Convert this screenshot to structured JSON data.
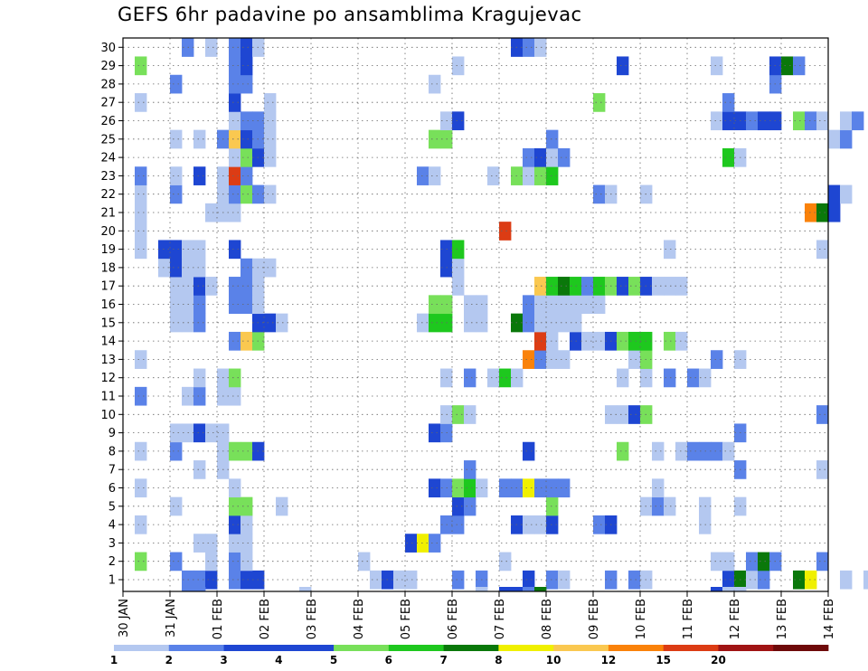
{
  "chart_data": {
    "type": "heatmap",
    "title": "GEFS 6hr padavine po ansamblima Kragujevac",
    "xlabel": "",
    "ylabel": "",
    "x_tick_labels": [
      "30 JAN",
      "31 JAN",
      "01 FEB",
      "02 FEB",
      "03 FEB",
      "04 FEB",
      "05 FEB",
      "06 FEB",
      "07 FEB",
      "08 FEB",
      "09 FEB",
      "10 FEB",
      "11 FEB",
      "12 FEB",
      "13 FEB",
      "14 FEB"
    ],
    "steps_per_day": 4,
    "y_tick_labels": [
      "1",
      "2",
      "3",
      "4",
      "5",
      "6",
      "7",
      "8",
      "9",
      "10",
      "11",
      "12",
      "13",
      "14",
      "15",
      "16",
      "17",
      "18",
      "19",
      "20",
      "21",
      "22",
      "23",
      "24",
      "25",
      "26",
      "27",
      "28",
      "29",
      "30"
    ],
    "grid": "dotted",
    "colorbar": {
      "levels": [
        "1",
        "2",
        "3",
        "4",
        "5",
        "6",
        "7",
        "8",
        "10",
        "12",
        "15",
        "20"
      ],
      "colors": [
        "#b4c8f0",
        "#5a82e8",
        "#1e46d2",
        "#1e46d2",
        "#78e05a",
        "#1ec81e",
        "#0a780a",
        "#f0f000",
        "#fac850",
        "#fa820a",
        "#dc3c14",
        "#a01414",
        "#6e0a0a"
      ]
    },
    "cells": [
      [
        1,
        5,
        2
      ],
      [
        1,
        6,
        2
      ],
      [
        1,
        7,
        3
      ],
      [
        1,
        9,
        2
      ],
      [
        1,
        10,
        4
      ],
      [
        1,
        11,
        3
      ],
      [
        1,
        21,
        1
      ],
      [
        1,
        22,
        3
      ],
      [
        1,
        23,
        1
      ],
      [
        1,
        24,
        1
      ],
      [
        1,
        28,
        2
      ],
      [
        1,
        30,
        2
      ],
      [
        1,
        34,
        3
      ],
      [
        1,
        36,
        2
      ],
      [
        1,
        37,
        1
      ],
      [
        1,
        41,
        2
      ],
      [
        1,
        43,
        2
      ],
      [
        1,
        44,
        1
      ],
      [
        1,
        51,
        4
      ],
      [
        1,
        52,
        7
      ],
      [
        1,
        53,
        1
      ],
      [
        1,
        54,
        2
      ],
      [
        1,
        57,
        7
      ],
      [
        1,
        58,
        8
      ],
      [
        1,
        61,
        1
      ],
      [
        1,
        63,
        1
      ],
      [
        1,
        64,
        1
      ],
      [
        2,
        1,
        5
      ],
      [
        2,
        4,
        2
      ],
      [
        2,
        7,
        1
      ],
      [
        2,
        9,
        2
      ],
      [
        2,
        10,
        1
      ],
      [
        2,
        20,
        1
      ],
      [
        2,
        32,
        1
      ],
      [
        2,
        50,
        1
      ],
      [
        2,
        51,
        1
      ],
      [
        2,
        53,
        2
      ],
      [
        2,
        54,
        7
      ],
      [
        2,
        55,
        2
      ],
      [
        2,
        59,
        2
      ],
      [
        3,
        6,
        1
      ],
      [
        3,
        7,
        1
      ],
      [
        3,
        9,
        1
      ],
      [
        3,
        10,
        1
      ],
      [
        3,
        24,
        3
      ],
      [
        3,
        25,
        8
      ],
      [
        3,
        26,
        2
      ],
      [
        4,
        1,
        1
      ],
      [
        4,
        9,
        3
      ],
      [
        4,
        10,
        1
      ],
      [
        4,
        27,
        2
      ],
      [
        4,
        28,
        2
      ],
      [
        4,
        33,
        3
      ],
      [
        4,
        34,
        1
      ],
      [
        4,
        35,
        1
      ],
      [
        4,
        36,
        3
      ],
      [
        4,
        40,
        2
      ],
      [
        4,
        41,
        3
      ],
      [
        4,
        49,
        1
      ],
      [
        5,
        4,
        1
      ],
      [
        5,
        9,
        5
      ],
      [
        5,
        10,
        5
      ],
      [
        5,
        13,
        1
      ],
      [
        5,
        28,
        3
      ],
      [
        5,
        29,
        2
      ],
      [
        5,
        36,
        5
      ],
      [
        5,
        44,
        1
      ],
      [
        5,
        45,
        2
      ],
      [
        5,
        46,
        1
      ],
      [
        5,
        49,
        1
      ],
      [
        5,
        52,
        1
      ],
      [
        6,
        1,
        1
      ],
      [
        6,
        9,
        1
      ],
      [
        6,
        26,
        3
      ],
      [
        6,
        27,
        2
      ],
      [
        6,
        28,
        5
      ],
      [
        6,
        29,
        6
      ],
      [
        6,
        30,
        1
      ],
      [
        6,
        32,
        2
      ],
      [
        6,
        33,
        2
      ],
      [
        6,
        34,
        8
      ],
      [
        6,
        35,
        2
      ],
      [
        6,
        36,
        2
      ],
      [
        6,
        37,
        2
      ],
      [
        6,
        45,
        1
      ],
      [
        7,
        6,
        1
      ],
      [
        7,
        8,
        1
      ],
      [
        7,
        29,
        2
      ],
      [
        7,
        52,
        2
      ],
      [
        7,
        59,
        1
      ],
      [
        8,
        1,
        1
      ],
      [
        8,
        4,
        2
      ],
      [
        8,
        8,
        1
      ],
      [
        8,
        9,
        5
      ],
      [
        8,
        10,
        5
      ],
      [
        8,
        11,
        3
      ],
      [
        8,
        34,
        3
      ],
      [
        8,
        42,
        5
      ],
      [
        8,
        45,
        1
      ],
      [
        8,
        47,
        1
      ],
      [
        8,
        48,
        2
      ],
      [
        8,
        49,
        2
      ],
      [
        8,
        50,
        2
      ],
      [
        8,
        51,
        1
      ],
      [
        9,
        4,
        1
      ],
      [
        9,
        5,
        1
      ],
      [
        9,
        6,
        3
      ],
      [
        9,
        7,
        1
      ],
      [
        9,
        8,
        1
      ],
      [
        9,
        26,
        3
      ],
      [
        9,
        27,
        2
      ],
      [
        9,
        52,
        2
      ],
      [
        10,
        27,
        1
      ],
      [
        10,
        28,
        5
      ],
      [
        10,
        29,
        1
      ],
      [
        10,
        41,
        1
      ],
      [
        10,
        42,
        1
      ],
      [
        10,
        43,
        3
      ],
      [
        10,
        44,
        5
      ],
      [
        10,
        59,
        2
      ],
      [
        11,
        1,
        2
      ],
      [
        11,
        5,
        1
      ],
      [
        11,
        6,
        2
      ],
      [
        11,
        8,
        1
      ],
      [
        11,
        9,
        1
      ],
      [
        12,
        6,
        1
      ],
      [
        12,
        8,
        1
      ],
      [
        12,
        9,
        5
      ],
      [
        12,
        27,
        1
      ],
      [
        12,
        29,
        2
      ],
      [
        12,
        31,
        1
      ],
      [
        12,
        32,
        6
      ],
      [
        12,
        33,
        1
      ],
      [
        12,
        42,
        1
      ],
      [
        12,
        44,
        1
      ],
      [
        12,
        46,
        2
      ],
      [
        12,
        48,
        2
      ],
      [
        12,
        49,
        1
      ],
      [
        13,
        1,
        1
      ],
      [
        13,
        34,
        10
      ],
      [
        13,
        35,
        2
      ],
      [
        13,
        36,
        1
      ],
      [
        13,
        37,
        1
      ],
      [
        13,
        43,
        1
      ],
      [
        13,
        44,
        5
      ],
      [
        13,
        50,
        2
      ],
      [
        13,
        52,
        1
      ],
      [
        14,
        9,
        2
      ],
      [
        14,
        10,
        9
      ],
      [
        14,
        11,
        5
      ],
      [
        14,
        35,
        11
      ],
      [
        14,
        36,
        1
      ],
      [
        14,
        38,
        3
      ],
      [
        14,
        39,
        1
      ],
      [
        14,
        40,
        1
      ],
      [
        14,
        41,
        3
      ],
      [
        14,
        42,
        5
      ],
      [
        14,
        43,
        6
      ],
      [
        14,
        44,
        6
      ],
      [
        14,
        46,
        5
      ],
      [
        14,
        47,
        1
      ],
      [
        15,
        4,
        1
      ],
      [
        15,
        5,
        1
      ],
      [
        15,
        6,
        2
      ],
      [
        15,
        11,
        3
      ],
      [
        15,
        12,
        3
      ],
      [
        15,
        13,
        1
      ],
      [
        15,
        25,
        1
      ],
      [
        15,
        26,
        6
      ],
      [
        15,
        27,
        6
      ],
      [
        15,
        29,
        1
      ],
      [
        15,
        30,
        1
      ],
      [
        15,
        33,
        7
      ],
      [
        15,
        34,
        2
      ],
      [
        15,
        35,
        1
      ],
      [
        15,
        36,
        1
      ],
      [
        15,
        37,
        1
      ],
      [
        15,
        38,
        1
      ],
      [
        16,
        4,
        1
      ],
      [
        16,
        5,
        1
      ],
      [
        16,
        6,
        2
      ],
      [
        16,
        9,
        2
      ],
      [
        16,
        10,
        2
      ],
      [
        16,
        11,
        1
      ],
      [
        16,
        26,
        5
      ],
      [
        16,
        27,
        5
      ],
      [
        16,
        29,
        1
      ],
      [
        16,
        30,
        1
      ],
      [
        16,
        34,
        2
      ],
      [
        16,
        35,
        1
      ],
      [
        16,
        36,
        1
      ],
      [
        16,
        37,
        1
      ],
      [
        16,
        38,
        1
      ],
      [
        16,
        39,
        1
      ],
      [
        16,
        40,
        1
      ],
      [
        17,
        4,
        1
      ],
      [
        17,
        5,
        1
      ],
      [
        17,
        6,
        3
      ],
      [
        17,
        7,
        1
      ],
      [
        17,
        9,
        2
      ],
      [
        17,
        10,
        2
      ],
      [
        17,
        11,
        1
      ],
      [
        17,
        28,
        1
      ],
      [
        17,
        35,
        9
      ],
      [
        17,
        36,
        6
      ],
      [
        17,
        37,
        7
      ],
      [
        17,
        38,
        6
      ],
      [
        17,
        39,
        2
      ],
      [
        17,
        40,
        6
      ],
      [
        17,
        41,
        5
      ],
      [
        17,
        42,
        3
      ],
      [
        17,
        43,
        5
      ],
      [
        17,
        44,
        3
      ],
      [
        17,
        45,
        1
      ],
      [
        17,
        46,
        1
      ],
      [
        17,
        47,
        1
      ],
      [
        18,
        3,
        1
      ],
      [
        18,
        4,
        3
      ],
      [
        18,
        5,
        1
      ],
      [
        18,
        6,
        1
      ],
      [
        18,
        10,
        2
      ],
      [
        18,
        11,
        1
      ],
      [
        18,
        12,
        1
      ],
      [
        18,
        27,
        3
      ],
      [
        18,
        28,
        1
      ],
      [
        19,
        1,
        1
      ],
      [
        19,
        3,
        3
      ],
      [
        19,
        4,
        3
      ],
      [
        19,
        5,
        1
      ],
      [
        19,
        6,
        1
      ],
      [
        19,
        9,
        3
      ],
      [
        19,
        27,
        3
      ],
      [
        19,
        28,
        6
      ],
      [
        19,
        46,
        1
      ],
      [
        19,
        59,
        1
      ],
      [
        20,
        1,
        1
      ],
      [
        20,
        32,
        11
      ],
      [
        21,
        1,
        1
      ],
      [
        21,
        7,
        1
      ],
      [
        21,
        8,
        1
      ],
      [
        21,
        9,
        1
      ],
      [
        21,
        58,
        10
      ],
      [
        21,
        59,
        7
      ],
      [
        21,
        60,
        3
      ],
      [
        22,
        1,
        1
      ],
      [
        22,
        4,
        2
      ],
      [
        22,
        8,
        1
      ],
      [
        22,
        9,
        2
      ],
      [
        22,
        10,
        5
      ],
      [
        22,
        11,
        2
      ],
      [
        22,
        12,
        1
      ],
      [
        22,
        40,
        2
      ],
      [
        22,
        41,
        1
      ],
      [
        22,
        44,
        1
      ],
      [
        22,
        60,
        3
      ],
      [
        22,
        61,
        1
      ],
      [
        23,
        1,
        2
      ],
      [
        23,
        4,
        1
      ],
      [
        23,
        6,
        3
      ],
      [
        23,
        8,
        1
      ],
      [
        23,
        9,
        11
      ],
      [
        23,
        10,
        2
      ],
      [
        23,
        25,
        2
      ],
      [
        23,
        26,
        1
      ],
      [
        23,
        31,
        1
      ],
      [
        23,
        33,
        5
      ],
      [
        23,
        34,
        1
      ],
      [
        23,
        35,
        5
      ],
      [
        23,
        36,
        6
      ],
      [
        24,
        9,
        1
      ],
      [
        24,
        10,
        5
      ],
      [
        24,
        11,
        3
      ],
      [
        24,
        12,
        1
      ],
      [
        24,
        34,
        2
      ],
      [
        24,
        35,
        3
      ],
      [
        24,
        36,
        1
      ],
      [
        24,
        37,
        2
      ],
      [
        24,
        51,
        6
      ],
      [
        24,
        52,
        1
      ],
      [
        25,
        4,
        1
      ],
      [
        25,
        6,
        1
      ],
      [
        25,
        8,
        2
      ],
      [
        25,
        9,
        9
      ],
      [
        25,
        10,
        3
      ],
      [
        25,
        11,
        2
      ],
      [
        25,
        12,
        1
      ],
      [
        25,
        26,
        5
      ],
      [
        25,
        27,
        5
      ],
      [
        25,
        36,
        2
      ],
      [
        25,
        60,
        1
      ],
      [
        25,
        61,
        2
      ],
      [
        26,
        9,
        1
      ],
      [
        26,
        10,
        2
      ],
      [
        26,
        11,
        2
      ],
      [
        26,
        12,
        1
      ],
      [
        26,
        27,
        1
      ],
      [
        26,
        28,
        3
      ],
      [
        26,
        50,
        1
      ],
      [
        26,
        51,
        3
      ],
      [
        26,
        52,
        3
      ],
      [
        26,
        53,
        2
      ],
      [
        26,
        54,
        3
      ],
      [
        26,
        55,
        3
      ],
      [
        26,
        57,
        5
      ],
      [
        26,
        58,
        2
      ],
      [
        26,
        59,
        1
      ],
      [
        26,
        61,
        1
      ],
      [
        26,
        62,
        2
      ],
      [
        27,
        1,
        1
      ],
      [
        27,
        9,
        3
      ],
      [
        27,
        12,
        1
      ],
      [
        27,
        40,
        5
      ],
      [
        27,
        51,
        2
      ],
      [
        28,
        4,
        2
      ],
      [
        28,
        9,
        2
      ],
      [
        28,
        10,
        2
      ],
      [
        28,
        26,
        1
      ],
      [
        28,
        55,
        2
      ],
      [
        29,
        1,
        5
      ],
      [
        29,
        9,
        2
      ],
      [
        29,
        10,
        3
      ],
      [
        29,
        28,
        1
      ],
      [
        29,
        42,
        3
      ],
      [
        29,
        50,
        1
      ],
      [
        29,
        55,
        3
      ],
      [
        29,
        56,
        7
      ],
      [
        29,
        57,
        2
      ],
      [
        30,
        5,
        2
      ],
      [
        30,
        7,
        1
      ],
      [
        30,
        9,
        2
      ],
      [
        30,
        10,
        3
      ],
      [
        30,
        11,
        1
      ],
      [
        30,
        33,
        3
      ],
      [
        30,
        34,
        2
      ],
      [
        30,
        35,
        1
      ]
    ],
    "bottom_strip": [
      [
        5,
        2
      ],
      [
        6,
        2
      ],
      [
        15,
        1
      ],
      [
        30,
        1
      ],
      [
        32,
        3
      ],
      [
        33,
        3
      ],
      [
        34,
        2
      ],
      [
        35,
        7
      ],
      [
        50,
        3
      ],
      [
        51,
        1
      ],
      [
        52,
        1
      ]
    ]
  }
}
